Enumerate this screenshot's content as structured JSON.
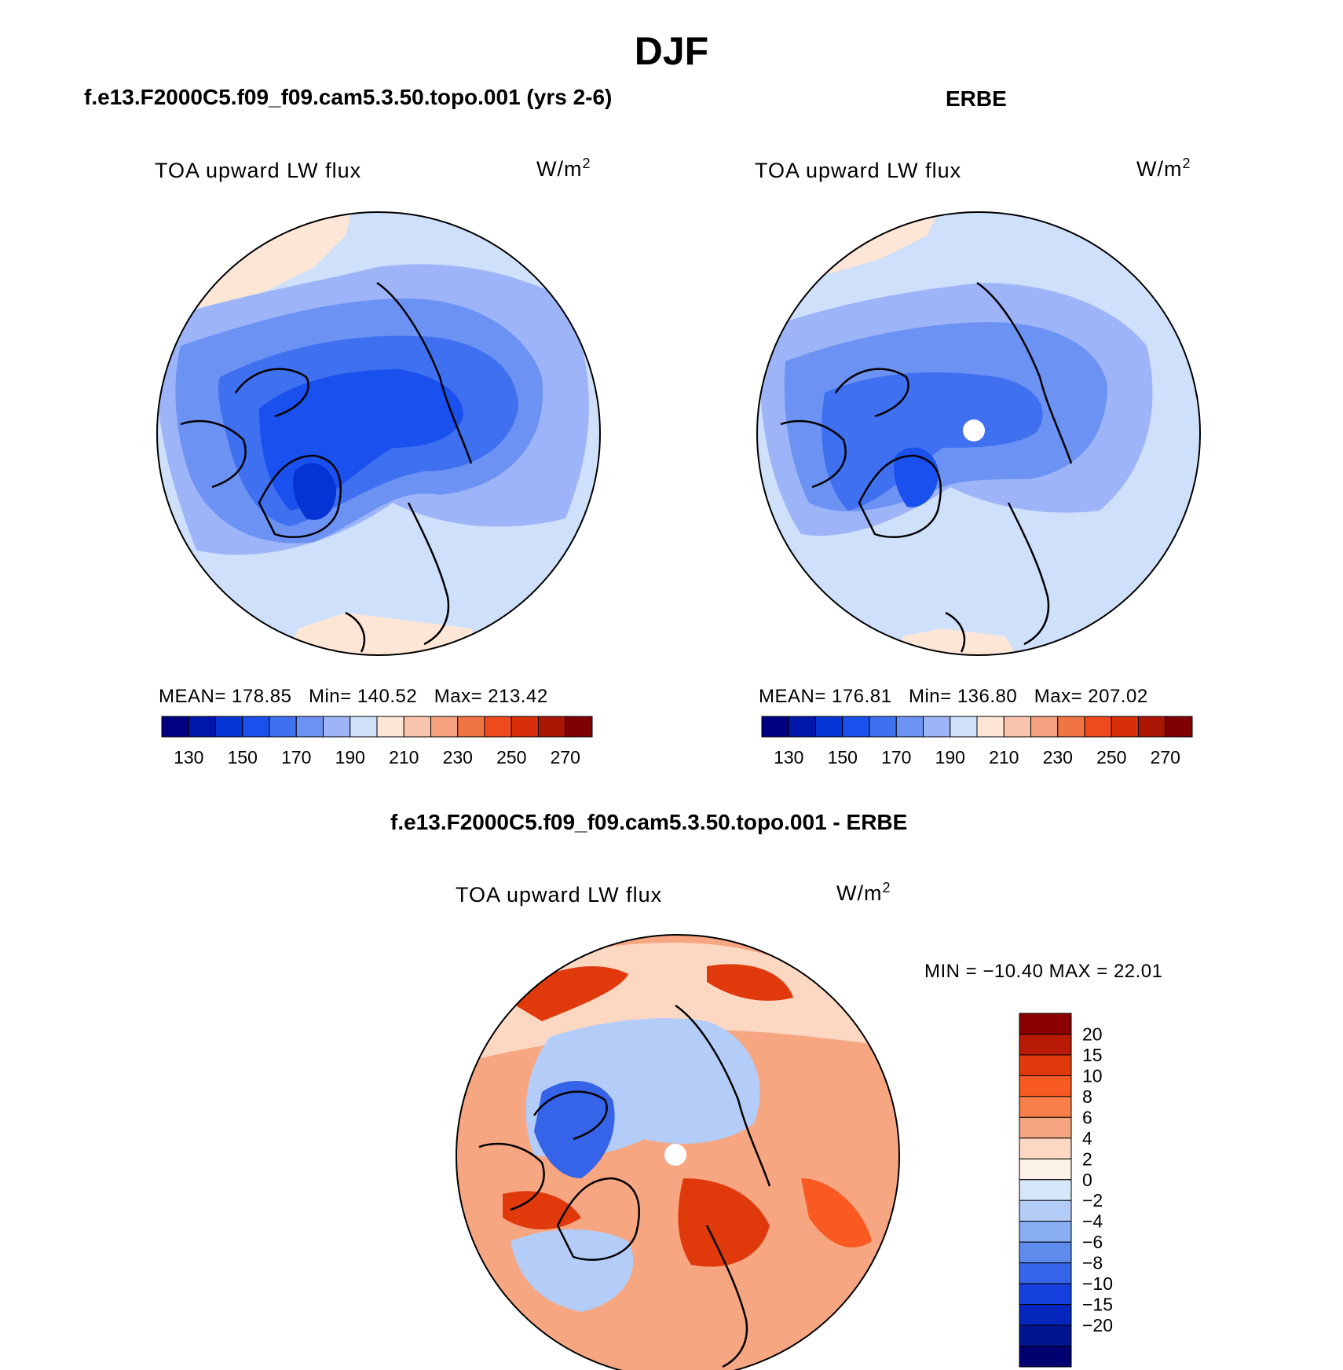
{
  "figure": {
    "title": "DJF"
  },
  "panels": [
    {
      "id": "model",
      "title": "f.e13.F2000C5.f09_f09.cam5.3.50.topo.001 (yrs 2-6)",
      "variable": "TOA upward LW flux",
      "units_base": "W/m",
      "units_exp": "2",
      "stats": {
        "mean_label": "MEAN=",
        "mean": "178.85",
        "min_label": "Min=",
        "min": "140.52",
        "max_label": "Max=",
        "max": "213.42"
      }
    },
    {
      "id": "obs",
      "title": "ERBE",
      "variable": "TOA upward LW flux",
      "units_base": "W/m",
      "units_exp": "2",
      "stats": {
        "mean_label": "MEAN=",
        "mean": "176.81",
        "min_label": "Min=",
        "min": "136.80",
        "max_label": "Max=",
        "max": "207.02"
      }
    },
    {
      "id": "diff",
      "title": "f.e13.F2000C5.f09_f09.cam5.3.50.topo.001 - ERBE",
      "variable": "TOA upward LW flux",
      "units_base": "W/m",
      "units_exp": "2",
      "stats_text": "MIN = −10.40 MAX =  22.01"
    }
  ],
  "colorbars": {
    "abs": {
      "orientation": "horizontal",
      "colors": [
        "#000080",
        "#0018aa",
        "#0434d4",
        "#1a50ee",
        "#3f70f0",
        "#6c92f4",
        "#9db5f8",
        "#cfe0fb",
        "#fde6d6",
        "#f9c4ac",
        "#f5a07e",
        "#f07544",
        "#ee4a1e",
        "#d82e0a",
        "#ac1604",
        "#7e0000"
      ],
      "tick_labels": [
        "130",
        "150",
        "170",
        "190",
        "210",
        "230",
        "250",
        "270"
      ]
    },
    "diff": {
      "orientation": "vertical",
      "colors_top_to_bottom": [
        "#8a0000",
        "#b81a05",
        "#e03a0c",
        "#f85a22",
        "#f7804a",
        "#f7a682",
        "#fcd8c2",
        "#fdf2e8",
        "#d6e7fb",
        "#b3ccf8",
        "#8aaef3",
        "#5d8ced",
        "#3664e8",
        "#1640dd",
        "#0426bc",
        "#00168e",
        "#000070"
      ],
      "tick_labels": [
        "20",
        "15",
        "10",
        "8",
        "6",
        "4",
        "2",
        "0",
        "−2",
        "−4",
        "−6",
        "−8",
        "−10",
        "−15",
        "−20"
      ]
    }
  }
}
